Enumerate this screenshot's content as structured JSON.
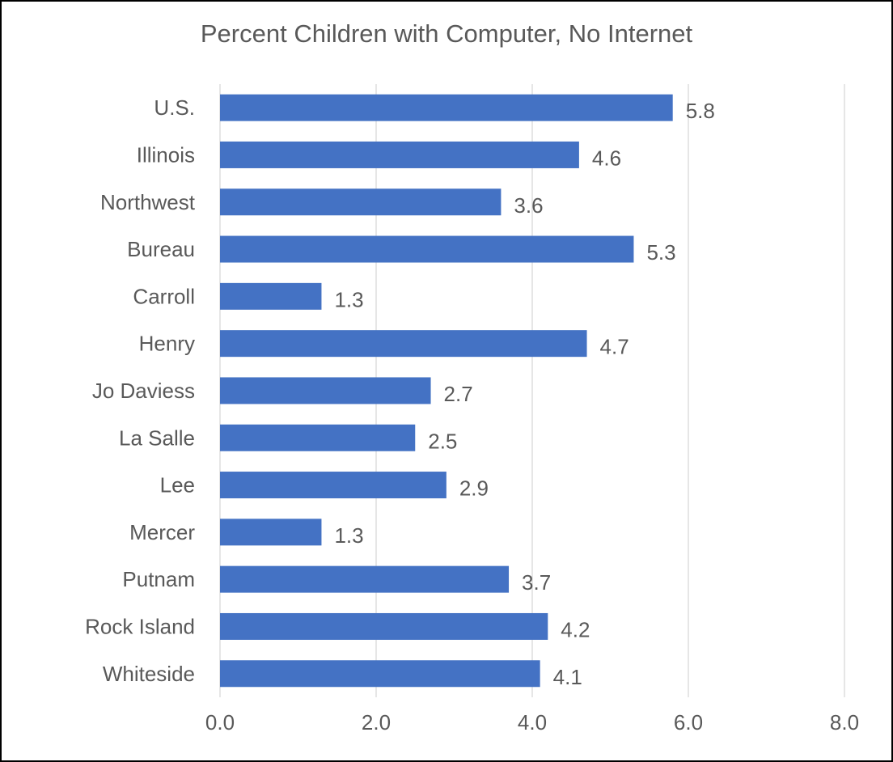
{
  "chart_data": {
    "type": "bar",
    "orientation": "horizontal",
    "title": "Percent Children with Computer, No Internet",
    "xlabel": "",
    "ylabel": "",
    "categories": [
      "U.S.",
      "Illinois",
      "Northwest",
      "Bureau",
      "Carroll",
      "Henry",
      "Jo Daviess",
      "La Salle",
      "Lee",
      "Mercer",
      "Putnam",
      "Rock Island",
      "Whiteside"
    ],
    "values": [
      5.8,
      4.6,
      3.6,
      5.3,
      1.3,
      4.7,
      2.7,
      2.5,
      2.9,
      1.3,
      3.7,
      4.2,
      4.1
    ],
    "data_labels": [
      "5.8",
      "4.6",
      "3.6",
      "5.3",
      "1.3",
      "4.7",
      "2.7",
      "2.5",
      "2.9",
      "1.3",
      "3.7",
      "4.2",
      "4.1"
    ],
    "xlim": [
      0,
      8
    ],
    "x_ticks": [
      "0.0",
      "2.0",
      "4.0",
      "6.0",
      "8.0"
    ],
    "grid": "vertical",
    "legend": "none",
    "bar_color": "#4472C4",
    "grid_color": "#D9D9D9",
    "text_color": "#595959",
    "border_color": "#000000"
  }
}
